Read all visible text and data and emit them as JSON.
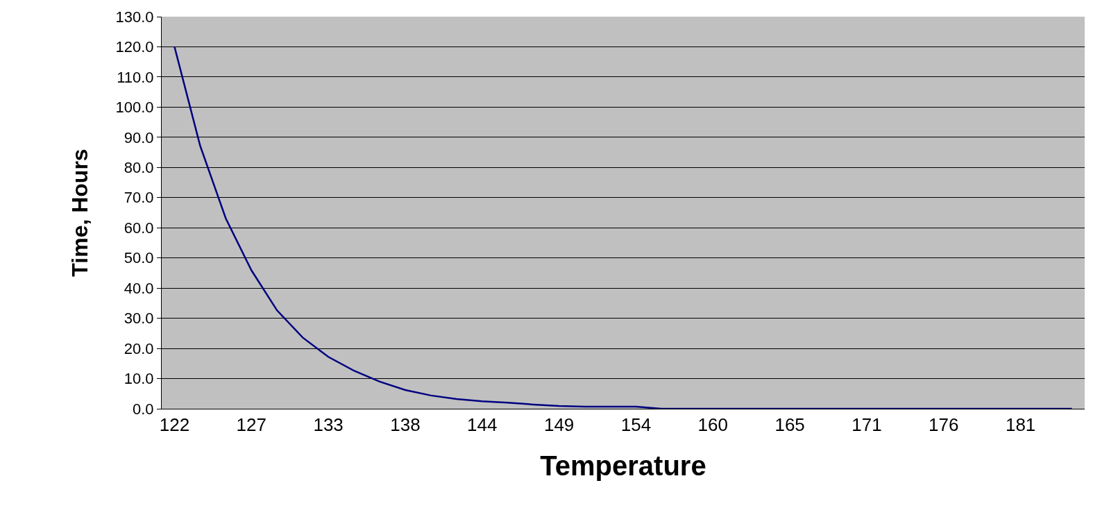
{
  "chart_data": {
    "type": "line",
    "xlabel": "Temperature",
    "ylabel": "Time, Hours",
    "categories": [
      "122",
      null,
      null,
      "127",
      null,
      null,
      "133",
      null,
      null,
      "138",
      null,
      null,
      "144",
      null,
      null,
      "149",
      null,
      null,
      "154",
      null,
      null,
      "160",
      null,
      null,
      "165",
      null,
      null,
      "171",
      null,
      null,
      "176",
      null,
      null,
      "181",
      null,
      null
    ],
    "series": [
      {
        "color": "#000080",
        "values": [
          120.0,
          87.2,
          63.1,
          45.9,
          32.6,
          23.6,
          17.2,
          12.6,
          9.0,
          6.2,
          4.4,
          3.2,
          2.5,
          2.0,
          1.4,
          0.9,
          0.7,
          0.7,
          0.7,
          0.0,
          0.0,
          0.0,
          0.0,
          0.0,
          0.0,
          0.0,
          0.0,
          0.0,
          0.0,
          0.0,
          0.0,
          0.0,
          0.0,
          0.0,
          0.0,
          0.0
        ]
      }
    ],
    "ylim": [
      0,
      130
    ],
    "yticks": [
      {
        "value": 0,
        "label": "0.0"
      },
      {
        "value": 10,
        "label": "10.0"
      },
      {
        "value": 20,
        "label": "20.0"
      },
      {
        "value": 30,
        "label": "30.0"
      },
      {
        "value": 40,
        "label": "40.0"
      },
      {
        "value": 50,
        "label": "50.0"
      },
      {
        "value": 60,
        "label": "60.0"
      },
      {
        "value": 70,
        "label": "70.0"
      },
      {
        "value": 80,
        "label": "80.0"
      },
      {
        "value": 90,
        "label": "90.0"
      },
      {
        "value": 100,
        "label": "100.0"
      },
      {
        "value": 110,
        "label": "110.0"
      },
      {
        "value": 120,
        "label": "120.0"
      },
      {
        "value": 130,
        "label": "130.0"
      }
    ],
    "grid": "y",
    "marker": "none",
    "line_style": "solid"
  }
}
